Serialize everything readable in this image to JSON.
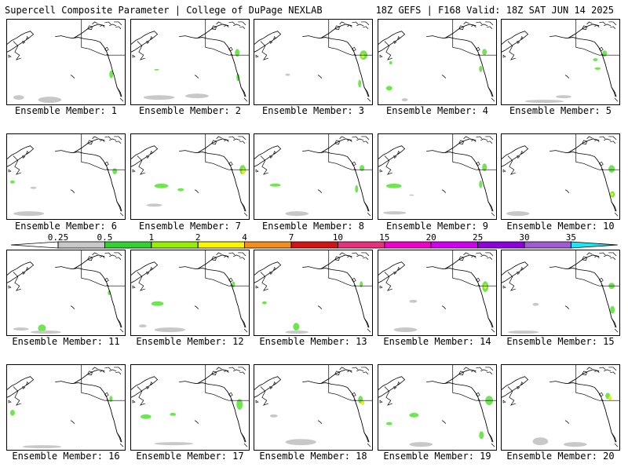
{
  "header": {
    "title": "Supercell Composite Parameter | College of DuPage NEXLAB",
    "run_info": "18Z GEFS | F168 Valid: 18Z SAT JUN 14 2025"
  },
  "member_label_prefix": "Ensemble Member: ",
  "members": [
    {
      "number": "1",
      "label": "Ensemble Member: 1"
    },
    {
      "number": "2",
      "label": "Ensemble Member: 2"
    },
    {
      "number": "3",
      "label": "Ensemble Member: 3"
    },
    {
      "number": "4",
      "label": "Ensemble Member: 4"
    },
    {
      "number": "5",
      "label": "Ensemble Member: 5"
    },
    {
      "number": "6",
      "label": "Ensemble Member: 6"
    },
    {
      "number": "7",
      "label": "Ensemble Member: 7"
    },
    {
      "number": "8",
      "label": "Ensemble Member: 8"
    },
    {
      "number": "9",
      "label": "Ensemble Member: 9"
    },
    {
      "number": "10",
      "label": "Ensemble Member: 10"
    },
    {
      "number": "11",
      "label": "Ensemble Member: 11"
    },
    {
      "number": "12",
      "label": "Ensemble Member: 12"
    },
    {
      "number": "13",
      "label": "Ensemble Member: 13"
    },
    {
      "number": "14",
      "label": "Ensemble Member: 14"
    },
    {
      "number": "15",
      "label": "Ensemble Member: 15"
    },
    {
      "number": "16",
      "label": "Ensemble Member: 16"
    },
    {
      "number": "17",
      "label": "Ensemble Member: 17"
    },
    {
      "number": "18",
      "label": "Ensemble Member: 18"
    },
    {
      "number": "19",
      "label": "Ensemble Member: 19"
    },
    {
      "number": "20",
      "label": "Ensemble Member: 20"
    }
  ],
  "colorbar": {
    "labels": [
      "0.25",
      "0.5",
      "1",
      "2",
      "4",
      "7",
      "10",
      "15",
      "20",
      "25",
      "30",
      "35"
    ],
    "colors": [
      "#c8c8c8",
      "#32d232",
      "#96f000",
      "#faf500",
      "#f58c1e",
      "#d21414",
      "#e6327d",
      "#f000c8",
      "#d200f0",
      "#8c00dc",
      "#a05ad2",
      "#1ee6f0"
    ]
  }
}
